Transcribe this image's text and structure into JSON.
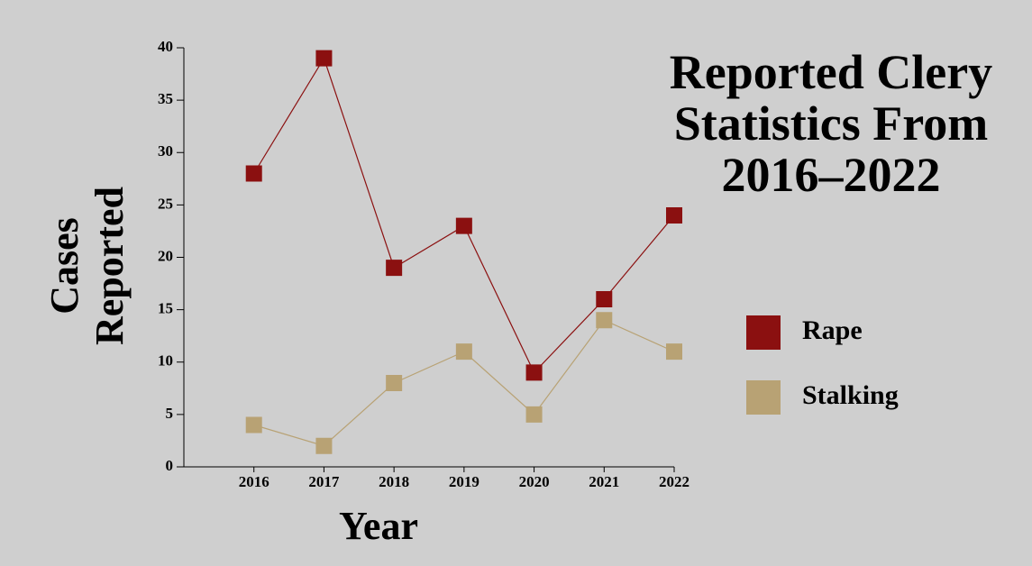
{
  "chart_data": {
    "type": "line",
    "title": "Reported Clery Statistics From 2016–2022",
    "x_label": "Year",
    "y_label": "Cases Reported",
    "x": [
      2016,
      2017,
      2018,
      2019,
      2020,
      2021,
      2022
    ],
    "xlim": [
      2015,
      2022
    ],
    "xticks": [
      2016,
      2017,
      2018,
      2019,
      2020,
      2021,
      2022
    ],
    "ylim": [
      0,
      40
    ],
    "yticks": [
      0,
      5,
      10,
      15,
      20,
      25,
      30,
      35,
      40
    ],
    "legend": "right",
    "marker": "square",
    "series": [
      {
        "name": "Rape",
        "color": "#8b1010",
        "values": [
          28,
          39,
          19,
          23,
          9,
          16,
          24
        ]
      },
      {
        "name": "Stalking",
        "color": "#b8a274",
        "values": [
          4,
          2,
          8,
          11,
          5,
          14,
          11
        ]
      }
    ]
  }
}
